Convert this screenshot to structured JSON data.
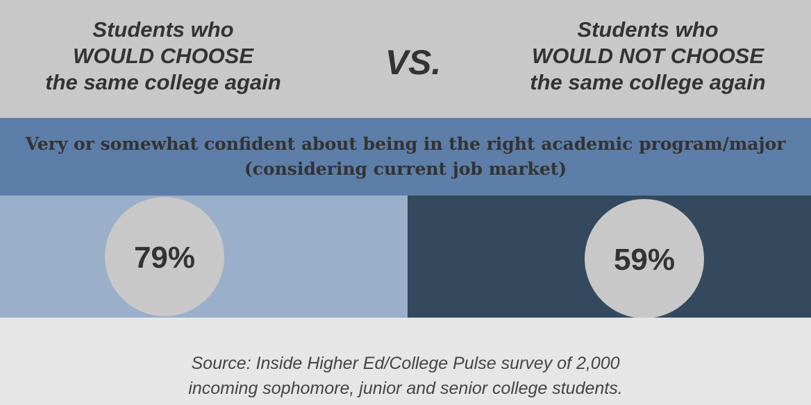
{
  "header": {
    "left_group": [
      "Students who",
      "WOULD CHOOSE",
      "the same college again"
    ],
    "vs": "VS.",
    "right_group": [
      "Students who",
      "WOULD NOT CHOOSE",
      "the same college again"
    ]
  },
  "band": {
    "lines": [
      "Very or somewhat confident about being in the right academic program/major",
      "(considering current job market)"
    ]
  },
  "chart_data": {
    "type": "bar",
    "categories": [
      "WOULD CHOOSE the same college again",
      "WOULD NOT CHOOSE the same college again"
    ],
    "values": [
      79,
      59
    ],
    "labels": [
      "79%",
      "59%"
    ],
    "unit": "%",
    "title": "",
    "colors": {
      "left_panel": "#9aafc9",
      "right_panel": "#34495e",
      "circle": "#c8c8c8",
      "label": "#333333"
    }
  },
  "footer": {
    "lines": [
      "Source: Inside Higher Ed/College Pulse survey of 2,000",
      "incoming sophomore, junior and senior college students."
    ]
  },
  "colors": {
    "header_bg": "#c8c8c8",
    "band_bg": "#5d7ea8",
    "footer_bg": "#e6e6e6",
    "text": "#333333"
  }
}
